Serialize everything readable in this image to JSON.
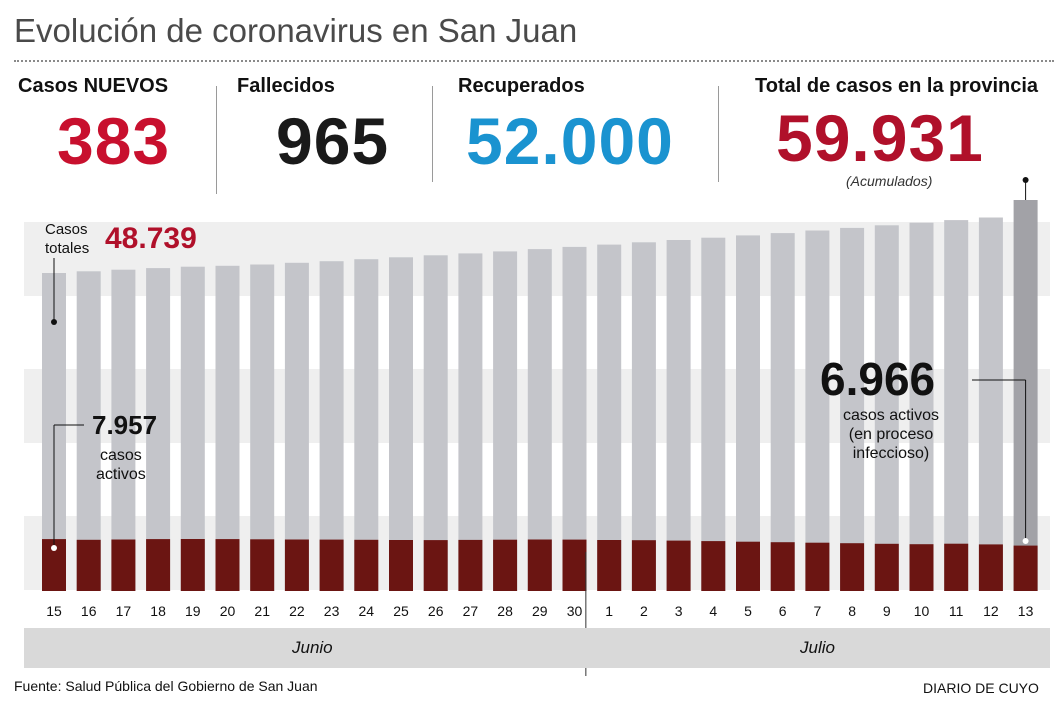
{
  "title": "Evolución de coronavirus en San Juan",
  "kpis": [
    {
      "label": "Casos NUEVOS",
      "value": "383",
      "color": "#c8102e"
    },
    {
      "label": "Fallecidos",
      "value": "965",
      "color": "#1a1a1a"
    },
    {
      "label": "Recuperados",
      "value": "52.000",
      "color": "#1a93d0"
    },
    {
      "label": "Total de casos en la provincia",
      "value": "59.931",
      "color": "#b0102a",
      "note": "(Acumulados)"
    }
  ],
  "annotations": {
    "start_total_label": "Casos\ntotales",
    "start_total_value": "48.739",
    "start_active_value": "7.957",
    "start_active_label": "casos\nactivos",
    "end_active_value": "6.966",
    "end_active_label": "casos activos\n(en proceso\ninfeccioso)"
  },
  "months": {
    "june": "Junio",
    "july": "Julio"
  },
  "source": "Fuente: Salud Pública del Gobierno de San Juan",
  "credit": "DIARIO DE CUYO",
  "colors": {
    "total_bar": "#c4c5ca",
    "last_total_bar": "#a2a2a7",
    "active_bar": "#6b1512",
    "band": "#efefef"
  },
  "chart_data": {
    "type": "bar",
    "categories": [
      "15",
      "16",
      "17",
      "18",
      "19",
      "20",
      "21",
      "22",
      "23",
      "24",
      "25",
      "26",
      "27",
      "28",
      "29",
      "30",
      "1",
      "2",
      "3",
      "4",
      "5",
      "6",
      "7",
      "8",
      "9",
      "10",
      "11",
      "12",
      "13"
    ],
    "series": [
      {
        "name": "Casos totales",
        "values": [
          48739,
          49000,
          49250,
          49500,
          49700,
          49850,
          50050,
          50300,
          50550,
          50850,
          51150,
          51450,
          51750,
          52050,
          52400,
          52750,
          53100,
          53450,
          53800,
          54150,
          54500,
          54850,
          55250,
          55650,
          56050,
          56450,
          56850,
          57250,
          59931
        ]
      },
      {
        "name": "casos activos",
        "values": [
          7957,
          7850,
          7900,
          7950,
          7970,
          7960,
          7930,
          7900,
          7880,
          7850,
          7820,
          7800,
          7840,
          7870,
          7900,
          7880,
          7820,
          7780,
          7720,
          7650,
          7560,
          7480,
          7400,
          7330,
          7240,
          7180,
          7250,
          7150,
          6966
        ]
      }
    ],
    "ylim": [
      0,
      59931
    ],
    "xgroups": [
      {
        "label": "Junio",
        "from": "15",
        "to": "30"
      },
      {
        "label": "Julio",
        "from": "1",
        "to": "13"
      }
    ],
    "legend": "none",
    "grid": false
  }
}
